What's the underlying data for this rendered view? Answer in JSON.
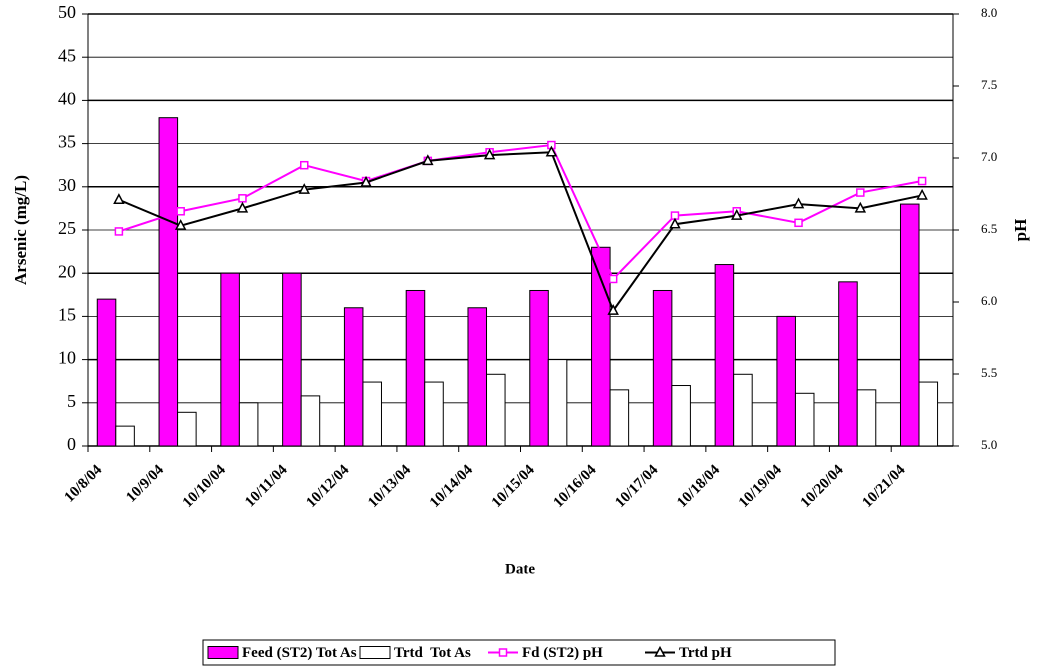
{
  "chart_data": {
    "type": "bar-line",
    "x_label": "Date",
    "y_label": "Arsenic (mg/L)",
    "y2_label": "pH",
    "categories": [
      "10/8/04",
      "10/9/04",
      "10/10/04",
      "10/11/04",
      "10/12/04",
      "10/13/04",
      "10/14/04",
      "10/15/04",
      "10/16/04",
      "10/17/04",
      "10/18/04",
      "10/19/04",
      "10/20/04",
      "10/21/04"
    ],
    "series": [
      {
        "name": "Feed (ST2) Tot As",
        "type": "bar",
        "color": "#ff00ff",
        "values": [
          17,
          38,
          20,
          20,
          16,
          18,
          16,
          18,
          23,
          18,
          21,
          15,
          19,
          28
        ]
      },
      {
        "name": "Trtd  Tot As",
        "type": "bar",
        "color": "#ffffff",
        "values": [
          2.3,
          3.9,
          5.0,
          5.8,
          7.4,
          7.4,
          8.3,
          10.0,
          6.5,
          7.0,
          8.3,
          6.1,
          6.5,
          7.4
        ]
      },
      {
        "name": "Fd (ST2) pH",
        "type": "line",
        "axis": "y2",
        "color": "#ff00ff",
        "marker": "square",
        "values": [
          6.49,
          6.63,
          6.72,
          6.95,
          6.84,
          6.98,
          7.04,
          7.09,
          6.16,
          6.6,
          6.63,
          6.55,
          6.76,
          6.84
        ]
      },
      {
        "name": "Trtd pH",
        "type": "line",
        "axis": "y2",
        "color": "#000000",
        "marker": "triangle",
        "values": [
          6.71,
          6.53,
          6.65,
          6.78,
          6.83,
          6.98,
          7.02,
          7.04,
          5.94,
          6.54,
          6.6,
          6.68,
          6.65,
          6.74
        ]
      }
    ],
    "ylim": [
      0,
      50
    ],
    "yticks": [
      0,
      5,
      10,
      15,
      20,
      25,
      30,
      35,
      40,
      45,
      50
    ],
    "y2lim": [
      5,
      8
    ],
    "y2ticks": [
      {
        "value": 5,
        "label": "5.0"
      },
      5.5,
      {
        "value": 6,
        "label": "6.0"
      },
      6.5,
      {
        "value": 7,
        "label": "7.0"
      },
      7.5,
      {
        "value": 8,
        "label": "8.0"
      }
    ],
    "grid": true,
    "legend": "bottom"
  }
}
